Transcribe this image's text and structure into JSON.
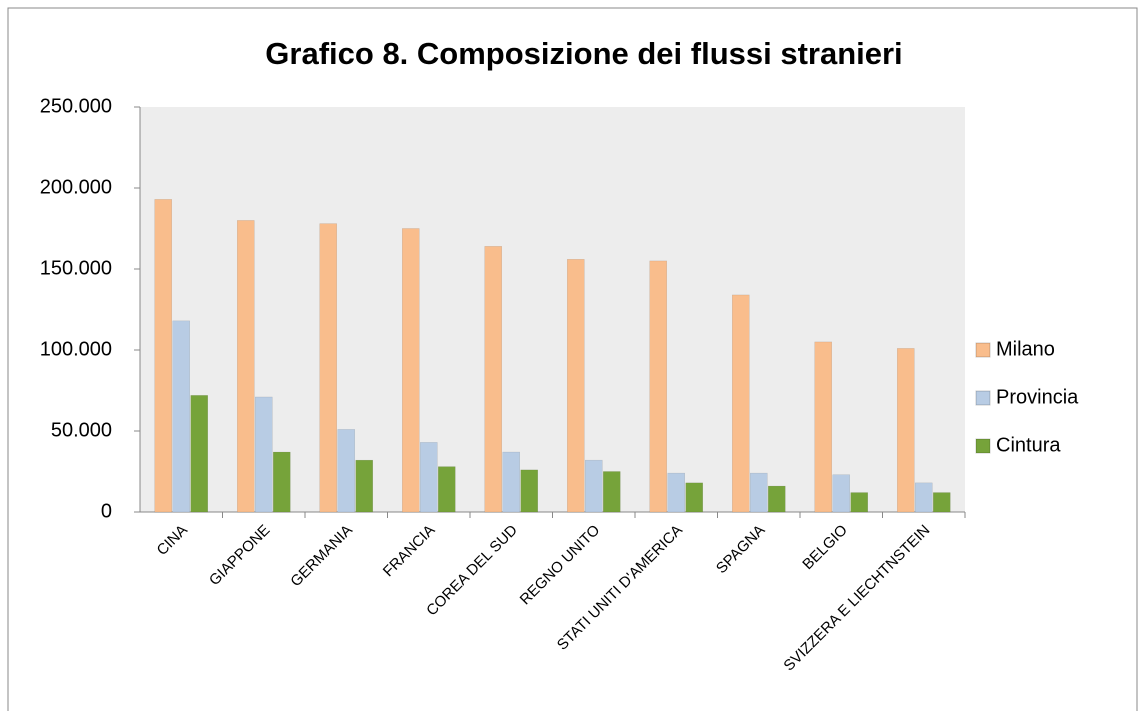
{
  "chart_data": {
    "type": "bar",
    "title": "Grafico 8. Composizione dei flussi stranieri",
    "categories": [
      "CINA",
      "GIAPPONE",
      "GERMANIA",
      "FRANCIA",
      "COREA DEL SUD",
      "REGNO UNITO",
      "STATI UNITI D'AMERICA",
      "SPAGNA",
      "BELGIO",
      "SVIZZERA E LIECHTNSTEIN"
    ],
    "series": [
      {
        "name": "Milano",
        "color": "#f9bd8c",
        "values": [
          193000,
          180000,
          178000,
          175000,
          164000,
          156000,
          155000,
          134000,
          105000,
          101000
        ]
      },
      {
        "name": "Provincia",
        "color": "#b8cce4",
        "values": [
          118000,
          71000,
          51000,
          43000,
          37000,
          32000,
          24000,
          24000,
          23000,
          18000
        ]
      },
      {
        "name": "Cintura",
        "color": "#76a33a",
        "values": [
          72000,
          37000,
          32000,
          28000,
          26000,
          25000,
          18000,
          16000,
          12000,
          12000
        ]
      }
    ],
    "ylim": [
      0,
      250000
    ],
    "yticks": [
      0,
      {
        "value": 50000,
        "label": "50.000"
      },
      {
        "value": 100000,
        "label": "100.000"
      },
      {
        "value": 150000,
        "label": "150.000"
      },
      {
        "value": 200000,
        "label": "200.000"
      },
      {
        "value": 250000,
        "label": "250.000"
      }
    ],
    "legend": "right"
  }
}
